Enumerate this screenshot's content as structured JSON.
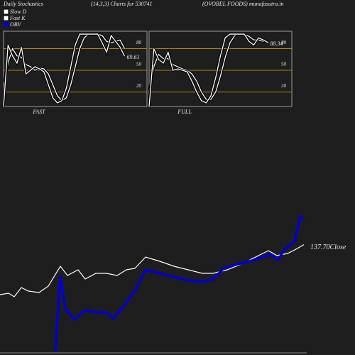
{
  "header": {
    "title": "Daily Stochastics",
    "subtitle": "(14,3,3) Charts for 530741",
    "site": "(OVOBEL FOODS) munafasutra.in"
  },
  "chart_data": [
    {
      "type": "stoch",
      "label": "FAST",
      "last_label": "69.61",
      "xlim": [
        0,
        32
      ],
      "ylim": [
        0,
        104
      ],
      "yticks": [
        20,
        50,
        80
      ],
      "grid": true,
      "grid_color": "#b8860b",
      "series": [
        {
          "name": "Slow D",
          "color": "#ffffff",
          "values": [
            30,
            60,
            80,
            70,
            68,
            58,
            55,
            50,
            53,
            52,
            45,
            30,
            15,
            8,
            12,
            30,
            55,
            80,
            95,
            100,
            100,
            100,
            98,
            90,
            88,
            90,
            92,
            80
          ]
        },
        {
          "name": "Fast K",
          "color": "#ffffff",
          "values": [
            0,
            85,
            70,
            60,
            82,
            45,
            50,
            55,
            52,
            48,
            30,
            12,
            5,
            8,
            25,
            55,
            85,
            100,
            100,
            100,
            100,
            100,
            88,
            75,
            98,
            90,
            82,
            69.61
          ]
        }
      ]
    },
    {
      "type": "stoch",
      "label": "FULL",
      "last_label": "88.34",
      "xlim": [
        0,
        30
      ],
      "ylim": [
        0,
        104
      ],
      "yticks": [
        20,
        50,
        80
      ],
      "grid": true,
      "grid_color": "#b8860b",
      "series": [
        {
          "name": "Slow D",
          "color": "#ffffff",
          "values": [
            20,
            55,
            72,
            66,
            66,
            58,
            55,
            52,
            50,
            45,
            35,
            20,
            10,
            10,
            20,
            42,
            68,
            88,
            98,
            100,
            100,
            97,
            92,
            92,
            90,
            90
          ]
        },
        {
          "name": "Fast K",
          "color": "#ffffff",
          "values": [
            0,
            80,
            65,
            60,
            75,
            50,
            52,
            50,
            48,
            35,
            20,
            8,
            5,
            15,
            40,
            70,
            95,
            100,
            100,
            100,
            100,
            90,
            85,
            95,
            92,
            88.34
          ]
        }
      ]
    },
    {
      "type": "line",
      "end_label": "137.70Close",
      "xlim": [
        0,
        500
      ],
      "ylim": [
        60,
        170
      ],
      "y2lim": [
        0,
        220
      ],
      "axis_color": "#888888",
      "series": [
        {
          "name": "Close",
          "color": "#ffffff",
          "x": [
            0,
            12,
            20,
            30,
            40,
            55,
            68,
            85,
            95,
            110,
            120,
            135,
            150,
            165,
            178,
            190,
            205,
            225,
            245,
            265,
            285,
            300,
            320,
            340,
            360,
            378,
            390,
            405,
            415,
            428
          ],
          "values": [
            102.5,
            103.5,
            101,
            107.5,
            105,
            104,
            108.5,
            122.5,
            116,
            120,
            113.5,
            117.5,
            117.5,
            116,
            120,
            121,
            129,
            126,
            122.5,
            120,
            117.5,
            117.5,
            120,
            124,
            129,
            133.5,
            130,
            131.5,
            134,
            137.7
          ]
        },
        {
          "name": "OBV",
          "color": "#0000cc",
          "axis": "y2",
          "x": [
            78,
            85,
            92,
            105,
            120,
            135,
            150,
            160,
            175,
            190,
            205,
            225,
            245,
            265,
            285,
            300,
            315,
            335,
            355,
            370,
            380,
            392,
            400,
            415,
            423,
            428
          ],
          "values": [
            5,
            112,
            65,
            50,
            63,
            60,
            60,
            52,
            70,
            90,
            120,
            115,
            110,
            105,
            103,
            107,
            122,
            128,
            133,
            138,
            142,
            134,
            148,
            160,
            195,
            192
          ]
        }
      ]
    }
  ]
}
